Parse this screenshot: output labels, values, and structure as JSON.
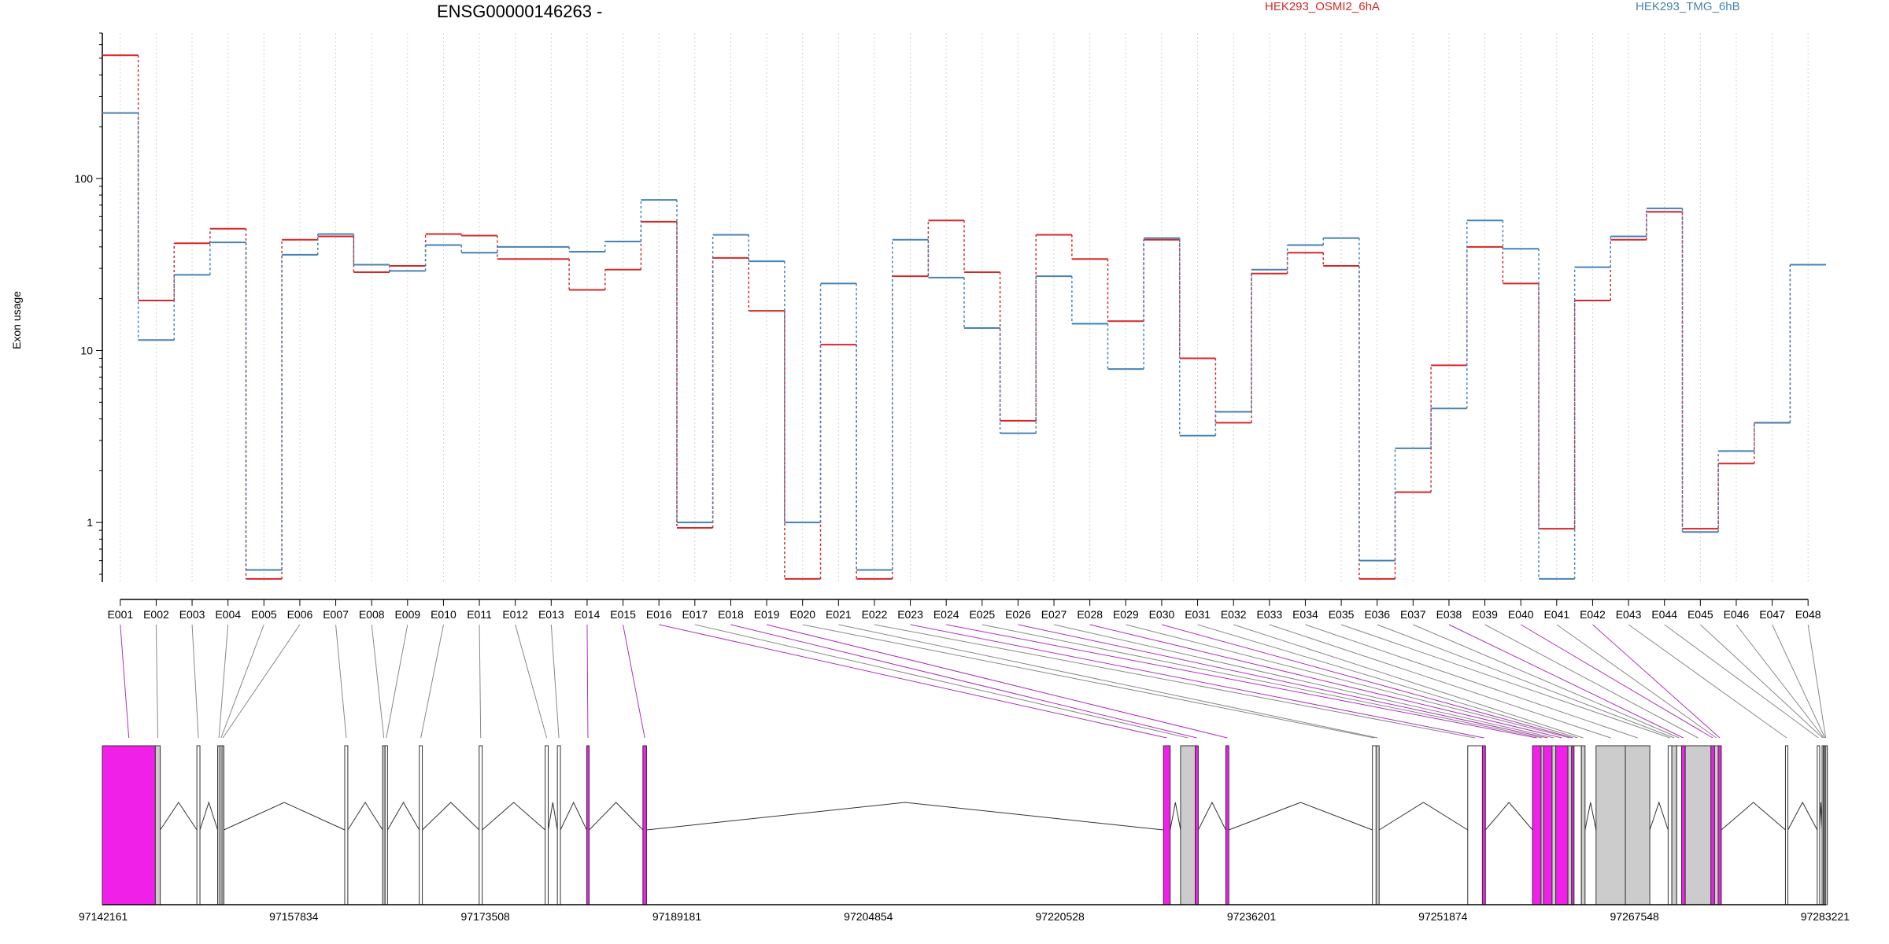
{
  "chart_data": {
    "type": "line",
    "title": "ENSG00000146263 -",
    "ylabel": "Exon usage",
    "xlabel": "",
    "y_scale": "log",
    "ylim": [
      0.45,
      700
    ],
    "y_ticks": [
      {
        "value": 1,
        "label": "1"
      },
      {
        "value": 10,
        "label": "10"
      },
      {
        "value": 100,
        "label": "100"
      }
    ],
    "grid": "vertical dotted lines at each exon",
    "legend_placement": "top",
    "categories": [
      "E001",
      "E002",
      "E003",
      "E004",
      "E005",
      "E006",
      "E007",
      "E008",
      "E009",
      "E010",
      "E011",
      "E012",
      "E013",
      "E014",
      "E015",
      "E016",
      "E017",
      "E018",
      "E019",
      "E020",
      "E021",
      "E022",
      "E023",
      "E024",
      "E025",
      "E026",
      "E027",
      "E028",
      "E029",
      "E030",
      "E031",
      "E032",
      "E033",
      "E034",
      "E035",
      "E036",
      "E037",
      "E038",
      "E039",
      "E040",
      "E041",
      "E042",
      "E043",
      "E044",
      "E045",
      "E046",
      "E047",
      "E048"
    ],
    "series": [
      {
        "name": "HEK293_OSMI2_6hA",
        "color": "#d62728",
        "values": [
          520,
          19.5,
          42,
          51,
          0.47,
          44,
          46,
          28.5,
          31,
          47.5,
          46.5,
          34,
          34,
          22.5,
          29.5,
          56,
          0.93,
          34.5,
          17,
          0.47,
          10.8,
          0.47,
          27,
          57,
          28.5,
          3.9,
          47,
          34,
          14.8,
          44,
          9,
          3.8,
          28,
          37,
          31,
          0.47,
          1.5,
          8.2,
          40,
          24.5,
          0.92,
          19.5,
          44,
          64,
          0.92,
          2.2,
          3.8,
          31.5
        ]
      },
      {
        "name": "HEK293_TMG_6hB",
        "color": "#4682b4",
        "values": [
          240,
          11.5,
          27.5,
          42.5,
          0.53,
          36,
          47.5,
          31.5,
          29,
          41,
          37,
          40,
          40,
          37.5,
          43,
          75,
          1.0,
          47,
          33,
          1.0,
          24.5,
          0.53,
          44,
          26.5,
          13.5,
          3.3,
          27,
          14.3,
          7.8,
          45,
          3.2,
          4.4,
          29.5,
          41,
          45,
          0.6,
          2.7,
          4.6,
          57,
          39,
          0.47,
          30.5,
          46,
          67,
          0.88,
          2.6,
          3.8,
          31.5
        ]
      }
    ],
    "gene_model": {
      "coordinate_ticks": [
        "97142161",
        "97157834",
        "97173508",
        "97189181",
        "97204854",
        "97220528",
        "97236201",
        "97251874",
        "97267548",
        "97283221"
      ],
      "range": [
        97142161,
        97283221
      ],
      "exons": [
        {
          "id": "E001",
          "start": 97142161,
          "end": 97146500,
          "fill": "#f020e8"
        },
        {
          "id": "E002",
          "start": 97146500,
          "end": 97146900,
          "fill": "#cccccc"
        },
        {
          "id": "E003",
          "start": 97149900,
          "end": 97150150,
          "fill": "#ffffff"
        },
        {
          "id": "E004",
          "start": 97151600,
          "end": 97151800,
          "fill": "#cccccc"
        },
        {
          "id": "E005",
          "start": 97151800,
          "end": 97151950,
          "fill": "#ffffff"
        },
        {
          "id": "E006",
          "start": 97151950,
          "end": 97152100,
          "fill": "#cccccc"
        },
        {
          "id": "E007",
          "start": 97162000,
          "end": 97162250,
          "fill": "#ffffff"
        },
        {
          "id": "E008",
          "start": 97165100,
          "end": 97165300,
          "fill": "#cccccc"
        },
        {
          "id": "E009",
          "start": 97165300,
          "end": 97165500,
          "fill": "#ffffff"
        },
        {
          "id": "E010",
          "start": 97168100,
          "end": 97168350,
          "fill": "#ffffff"
        },
        {
          "id": "E011",
          "start": 97173000,
          "end": 97173250,
          "fill": "#ffffff"
        },
        {
          "id": "E012",
          "start": 97178400,
          "end": 97178650,
          "fill": "#ffffff"
        },
        {
          "id": "E013",
          "start": 97179400,
          "end": 97179650,
          "fill": "#ffffff"
        },
        {
          "id": "E014",
          "start": 97181800,
          "end": 97182000,
          "fill": "#f020e8"
        },
        {
          "id": "E015",
          "start": 97186400,
          "end": 97186700,
          "fill": "#f020e8"
        },
        {
          "id": "E016",
          "start": 97229000,
          "end": 97229550,
          "fill": "#f020e8"
        },
        {
          "id": "E017",
          "start": 97230400,
          "end": 97231600,
          "fill": "#cccccc"
        },
        {
          "id": "E018",
          "start": 97231600,
          "end": 97231850,
          "fill": "#f020e8"
        },
        {
          "id": "E019",
          "start": 97234100,
          "end": 97234350,
          "fill": "#f020e8"
        },
        {
          "id": "E020",
          "start": 97246100,
          "end": 97246400,
          "fill": "#ffffff"
        },
        {
          "id": "E021",
          "start": 97246400,
          "end": 97246650,
          "fill": "#cccccc"
        },
        {
          "id": "E022",
          "start": 97253900,
          "end": 97255100,
          "fill": "#ffffff"
        },
        {
          "id": "E023",
          "start": 97255100,
          "end": 97255350,
          "fill": "#f020e8"
        },
        {
          "id": "E024",
          "start": 97259200,
          "end": 97259900,
          "fill": "#f020e8"
        },
        {
          "id": "E025",
          "start": 97259900,
          "end": 97260100,
          "fill": "#cccccc"
        },
        {
          "id": "E026",
          "start": 97260100,
          "end": 97260800,
          "fill": "#f020e8"
        },
        {
          "id": "E027",
          "start": 97260800,
          "end": 97261100,
          "fill": "#cccccc"
        },
        {
          "id": "E028",
          "start": 97261100,
          "end": 97262100,
          "fill": "#f020e8"
        },
        {
          "id": "E029",
          "start": 97262100,
          "end": 97262400,
          "fill": "#cccccc"
        },
        {
          "id": "E030",
          "start": 97262400,
          "end": 97262600,
          "fill": "#f020e8"
        },
        {
          "id": "E031",
          "start": 97262600,
          "end": 97263200,
          "fill": "#ffffff"
        },
        {
          "id": "E032",
          "start": 97263200,
          "end": 97263500,
          "fill": "#cccccc"
        },
        {
          "id": "E033",
          "start": 97264400,
          "end": 97266800,
          "fill": "#cccccc"
        },
        {
          "id": "E034",
          "start": 97266800,
          "end": 97268800,
          "fill": "#cccccc"
        },
        {
          "id": "E035",
          "start": 97270300,
          "end": 97270600,
          "fill": "#ffffff"
        },
        {
          "id": "E036",
          "start": 97270600,
          "end": 97271000,
          "fill": "#cccccc"
        },
        {
          "id": "E037",
          "start": 97271000,
          "end": 97271400,
          "fill": "#ffffff"
        },
        {
          "id": "E038",
          "start": 97271400,
          "end": 97271700,
          "fill": "#f020e8"
        },
        {
          "id": "E039",
          "start": 97271700,
          "end": 97273800,
          "fill": "#cccccc"
        },
        {
          "id": "E040",
          "start": 97273800,
          "end": 97274100,
          "fill": "#f020e8"
        },
        {
          "id": "E041",
          "start": 97274100,
          "end": 97274400,
          "fill": "#cccccc"
        },
        {
          "id": "E042",
          "start": 97274400,
          "end": 97274650,
          "fill": "#f020e8"
        },
        {
          "id": "E043",
          "start": 97279900,
          "end": 97280100,
          "fill": "#ffffff"
        },
        {
          "id": "E044",
          "start": 97282500,
          "end": 97282700,
          "fill": "#ffffff"
        },
        {
          "id": "E045",
          "start": 97282900,
          "end": 97283000,
          "fill": "#ffffff"
        },
        {
          "id": "E046",
          "start": 97283000,
          "end": 97283100,
          "fill": "#cccccc"
        },
        {
          "id": "E047",
          "start": 97283100,
          "end": 97283170,
          "fill": "#ffffff"
        },
        {
          "id": "E048",
          "start": 97283170,
          "end": 97283221,
          "fill": "#cccccc"
        }
      ],
      "introns": [
        [
          "E002",
          "E003"
        ],
        [
          "E003",
          "E004"
        ],
        [
          "E006",
          "E007"
        ],
        [
          "E007",
          "E008"
        ],
        [
          "E009",
          "E010"
        ],
        [
          "E010",
          "E011"
        ],
        [
          "E011",
          "E012"
        ],
        [
          "E012",
          "E013"
        ],
        [
          "E013",
          "E014"
        ],
        [
          "E014",
          "E015"
        ],
        [
          "E015",
          "E016"
        ],
        [
          "E016",
          "E017"
        ],
        [
          "E018",
          "E019"
        ],
        [
          "E019",
          "E020"
        ],
        [
          "E021",
          "E022"
        ],
        [
          "E023",
          "E024"
        ],
        [
          "E032",
          "E033"
        ],
        [
          "E034",
          "E035"
        ],
        [
          "E036",
          "E037"
        ],
        [
          "E042",
          "E043"
        ],
        [
          "E043",
          "E044"
        ],
        [
          "E044",
          "E045"
        ]
      ]
    }
  }
}
